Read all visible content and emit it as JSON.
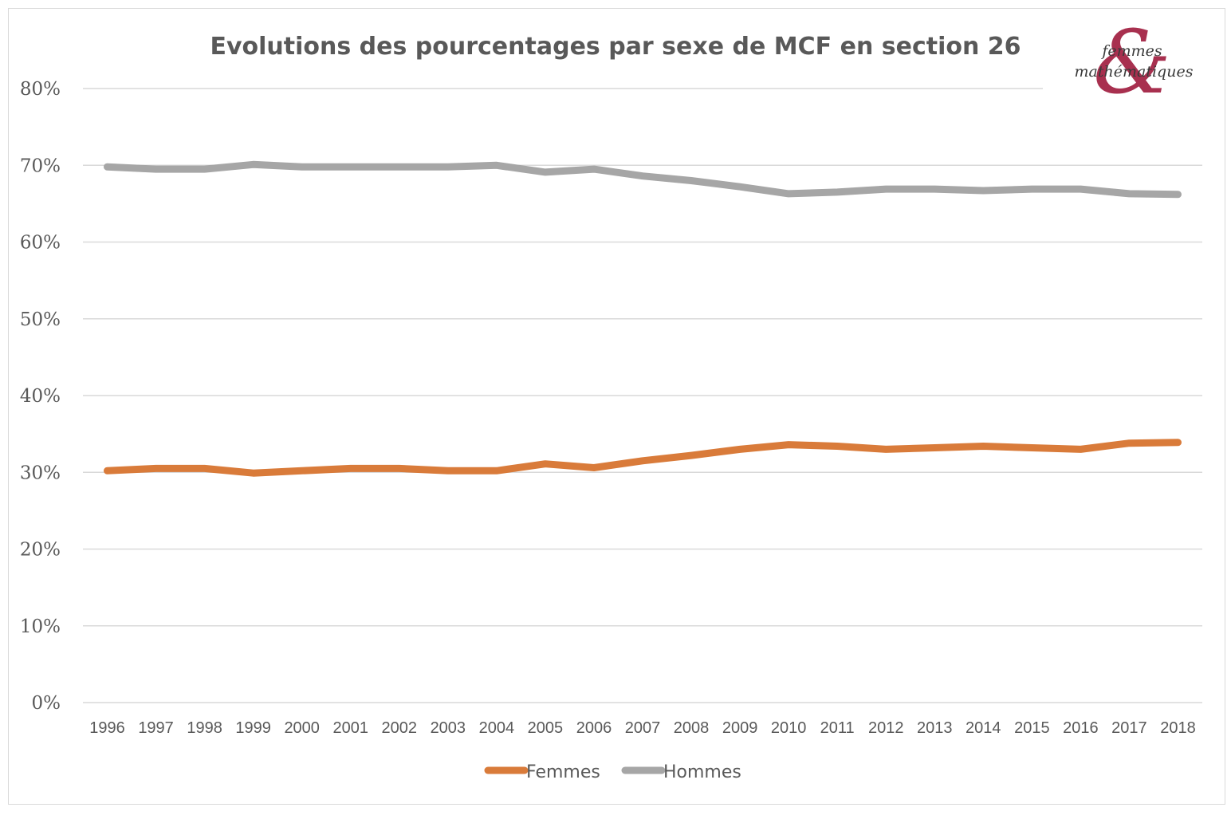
{
  "chart_data": {
    "type": "line",
    "title": "Evolutions des pourcentages par sexe de MCF en section 26",
    "xlabel": "",
    "ylabel": "",
    "ylim": [
      0,
      0.8
    ],
    "yticks": [
      "0%",
      "10%",
      "20%",
      "30%",
      "40%",
      "50%",
      "60%",
      "70%",
      "80%"
    ],
    "grid": true,
    "legend_position": "bottom",
    "categories": [
      "1996",
      "1997",
      "1998",
      "1999",
      "2000",
      "2001",
      "2002",
      "2003",
      "2004",
      "2005",
      "2006",
      "2007",
      "2008",
      "2009",
      "2010",
      "2011",
      "2012",
      "2013",
      "2014",
      "2015",
      "2016",
      "2017",
      "2018"
    ],
    "series": [
      {
        "name": "Femmes",
        "color": "#d97b3a",
        "values": [
          0.302,
          0.305,
          0.305,
          0.299,
          0.302,
          0.305,
          0.305,
          0.302,
          0.302,
          0.311,
          0.306,
          0.315,
          0.322,
          0.33,
          0.336,
          0.334,
          0.33,
          0.332,
          0.334,
          0.332,
          0.33,
          0.338,
          0.339
        ]
      },
      {
        "name": "Hommes",
        "color": "#a6a6a6",
        "values": [
          0.698,
          0.695,
          0.695,
          0.701,
          0.698,
          0.698,
          0.698,
          0.698,
          0.7,
          0.691,
          0.695,
          0.686,
          0.68,
          0.672,
          0.663,
          0.665,
          0.669,
          0.669,
          0.667,
          0.669,
          0.669,
          0.663,
          0.662
        ]
      }
    ]
  },
  "logo": {
    "line1": "femmes",
    "line2": "mathématiques",
    "glyph": "&",
    "color": "#9e1a3c"
  }
}
